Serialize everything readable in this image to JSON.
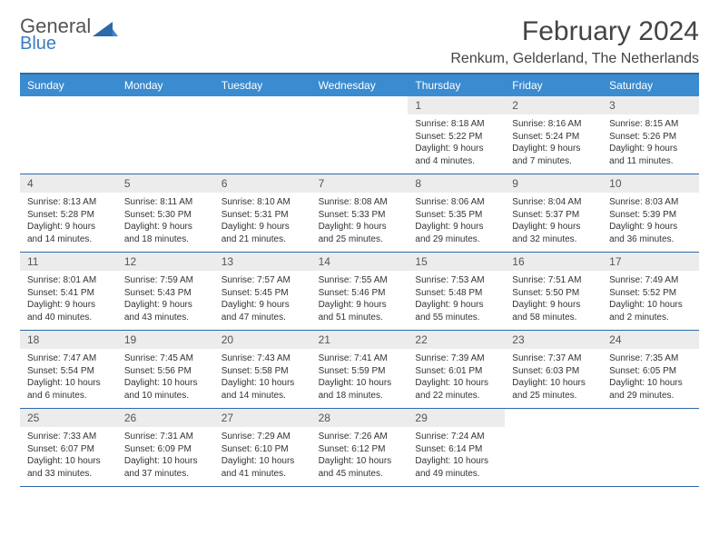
{
  "logo": {
    "word1": "General",
    "word2": "Blue",
    "text_color": "#555555",
    "accent_color": "#3a7cbf",
    "shape_color": "#2c6aa8"
  },
  "title": {
    "month": "February 2024",
    "location": "Renkum, Gelderland, The Netherlands",
    "text_color": "#444444",
    "title_fontsize": 30,
    "location_fontsize": 16
  },
  "colors": {
    "header_bg": "#3a8bd0",
    "header_text": "#ffffff",
    "border": "#2c6aa8",
    "daynum_bg": "#ececec",
    "daynum_text": "#555555",
    "body_text": "#333333",
    "page_bg": "#ffffff"
  },
  "day_labels": [
    "Sunday",
    "Monday",
    "Tuesday",
    "Wednesday",
    "Thursday",
    "Friday",
    "Saturday"
  ],
  "grid": {
    "columns": 7,
    "rows": 5,
    "leading_blanks": 4
  },
  "days": [
    {
      "n": "1",
      "sunrise": "8:18 AM",
      "sunset": "5:22 PM",
      "daylight": "9 hours and 4 minutes."
    },
    {
      "n": "2",
      "sunrise": "8:16 AM",
      "sunset": "5:24 PM",
      "daylight": "9 hours and 7 minutes."
    },
    {
      "n": "3",
      "sunrise": "8:15 AM",
      "sunset": "5:26 PM",
      "daylight": "9 hours and 11 minutes."
    },
    {
      "n": "4",
      "sunrise": "8:13 AM",
      "sunset": "5:28 PM",
      "daylight": "9 hours and 14 minutes."
    },
    {
      "n": "5",
      "sunrise": "8:11 AM",
      "sunset": "5:30 PM",
      "daylight": "9 hours and 18 minutes."
    },
    {
      "n": "6",
      "sunrise": "8:10 AM",
      "sunset": "5:31 PM",
      "daylight": "9 hours and 21 minutes."
    },
    {
      "n": "7",
      "sunrise": "8:08 AM",
      "sunset": "5:33 PM",
      "daylight": "9 hours and 25 minutes."
    },
    {
      "n": "8",
      "sunrise": "8:06 AM",
      "sunset": "5:35 PM",
      "daylight": "9 hours and 29 minutes."
    },
    {
      "n": "9",
      "sunrise": "8:04 AM",
      "sunset": "5:37 PM",
      "daylight": "9 hours and 32 minutes."
    },
    {
      "n": "10",
      "sunrise": "8:03 AM",
      "sunset": "5:39 PM",
      "daylight": "9 hours and 36 minutes."
    },
    {
      "n": "11",
      "sunrise": "8:01 AM",
      "sunset": "5:41 PM",
      "daylight": "9 hours and 40 minutes."
    },
    {
      "n": "12",
      "sunrise": "7:59 AM",
      "sunset": "5:43 PM",
      "daylight": "9 hours and 43 minutes."
    },
    {
      "n": "13",
      "sunrise": "7:57 AM",
      "sunset": "5:45 PM",
      "daylight": "9 hours and 47 minutes."
    },
    {
      "n": "14",
      "sunrise": "7:55 AM",
      "sunset": "5:46 PM",
      "daylight": "9 hours and 51 minutes."
    },
    {
      "n": "15",
      "sunrise": "7:53 AM",
      "sunset": "5:48 PM",
      "daylight": "9 hours and 55 minutes."
    },
    {
      "n": "16",
      "sunrise": "7:51 AM",
      "sunset": "5:50 PM",
      "daylight": "9 hours and 58 minutes."
    },
    {
      "n": "17",
      "sunrise": "7:49 AM",
      "sunset": "5:52 PM",
      "daylight": "10 hours and 2 minutes."
    },
    {
      "n": "18",
      "sunrise": "7:47 AM",
      "sunset": "5:54 PM",
      "daylight": "10 hours and 6 minutes."
    },
    {
      "n": "19",
      "sunrise": "7:45 AM",
      "sunset": "5:56 PM",
      "daylight": "10 hours and 10 minutes."
    },
    {
      "n": "20",
      "sunrise": "7:43 AM",
      "sunset": "5:58 PM",
      "daylight": "10 hours and 14 minutes."
    },
    {
      "n": "21",
      "sunrise": "7:41 AM",
      "sunset": "5:59 PM",
      "daylight": "10 hours and 18 minutes."
    },
    {
      "n": "22",
      "sunrise": "7:39 AM",
      "sunset": "6:01 PM",
      "daylight": "10 hours and 22 minutes."
    },
    {
      "n": "23",
      "sunrise": "7:37 AM",
      "sunset": "6:03 PM",
      "daylight": "10 hours and 25 minutes."
    },
    {
      "n": "24",
      "sunrise": "7:35 AM",
      "sunset": "6:05 PM",
      "daylight": "10 hours and 29 minutes."
    },
    {
      "n": "25",
      "sunrise": "7:33 AM",
      "sunset": "6:07 PM",
      "daylight": "10 hours and 33 minutes."
    },
    {
      "n": "26",
      "sunrise": "7:31 AM",
      "sunset": "6:09 PM",
      "daylight": "10 hours and 37 minutes."
    },
    {
      "n": "27",
      "sunrise": "7:29 AM",
      "sunset": "6:10 PM",
      "daylight": "10 hours and 41 minutes."
    },
    {
      "n": "28",
      "sunrise": "7:26 AM",
      "sunset": "6:12 PM",
      "daylight": "10 hours and 45 minutes."
    },
    {
      "n": "29",
      "sunrise": "7:24 AM",
      "sunset": "6:14 PM",
      "daylight": "10 hours and 49 minutes."
    }
  ],
  "labels": {
    "sunrise_prefix": "Sunrise: ",
    "sunset_prefix": "Sunset: ",
    "daylight_prefix": "Daylight: "
  }
}
